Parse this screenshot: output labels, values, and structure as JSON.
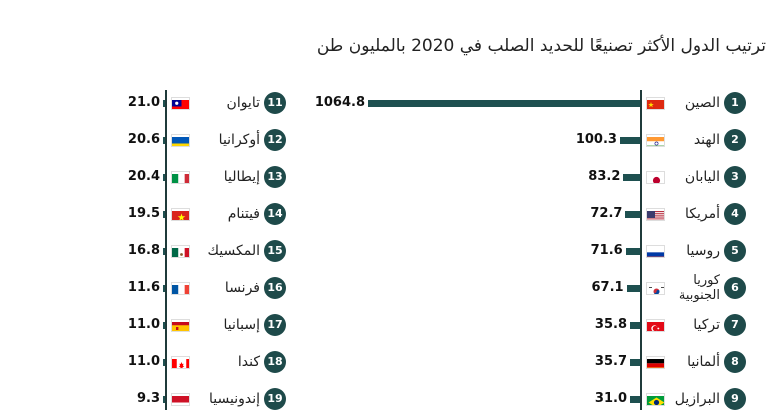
{
  "chart_data": {
    "type": "bar",
    "title": "ترتيب الدول الأكثر تصنيعًا للحديد الصلب في 2020 بالمليون طن",
    "series": [
      {
        "rank": "1",
        "country": "الصين",
        "flag": "cn",
        "value": 1064.8,
        "label": "1064.8"
      },
      {
        "rank": "2",
        "country": "الهند",
        "flag": "in",
        "value": 100.3,
        "label": "100.3"
      },
      {
        "rank": "3",
        "country": "اليابان",
        "flag": "jp",
        "value": 83.2,
        "label": "83.2"
      },
      {
        "rank": "4",
        "country": "أمريكا",
        "flag": "us",
        "value": 72.7,
        "label": "72.7"
      },
      {
        "rank": "5",
        "country": "روسيا",
        "flag": "ru",
        "value": 71.6,
        "label": "71.6"
      },
      {
        "rank": "6",
        "country": "كوريا الجنوبية",
        "flag": "kr",
        "value": 67.1,
        "label": "67.1"
      },
      {
        "rank": "7",
        "country": "تركيا",
        "flag": "tr",
        "value": 35.8,
        "label": "35.8"
      },
      {
        "rank": "8",
        "country": "ألمانيا",
        "flag": "de",
        "value": 35.7,
        "label": "35.7"
      },
      {
        "rank": "9",
        "country": "البرازيل",
        "flag": "br",
        "value": 31.0,
        "label": "31.0"
      },
      {
        "rank": "11",
        "country": "تايوان",
        "flag": "tw",
        "value": 21.0,
        "label": "21.0"
      },
      {
        "rank": "12",
        "country": "أوكرانيا",
        "flag": "ua",
        "value": 20.6,
        "label": "20.6"
      },
      {
        "rank": "13",
        "country": "إيطاليا",
        "flag": "it",
        "value": 20.4,
        "label": "20.4"
      },
      {
        "rank": "14",
        "country": "فيتنام",
        "flag": "vn",
        "value": 19.5,
        "label": "19.5"
      },
      {
        "rank": "15",
        "country": "المكسيك",
        "flag": "mx",
        "value": 16.8,
        "label": "16.8"
      },
      {
        "rank": "16",
        "country": "فرنسا",
        "flag": "fr",
        "value": 11.6,
        "label": "11.6"
      },
      {
        "rank": "17",
        "country": "إسبانيا",
        "flag": "es",
        "value": 11.0,
        "label": "11.0"
      },
      {
        "rank": "18",
        "country": "كندا",
        "flag": "ca",
        "value": 11.0,
        "label": "11.0"
      },
      {
        "rank": "19",
        "country": "إندونيسيا",
        "flag": "id",
        "value": 9.3,
        "label": "9.3"
      }
    ],
    "colors": {
      "bar": "#1e5050",
      "rank_badge": "#1e4a4a"
    }
  }
}
